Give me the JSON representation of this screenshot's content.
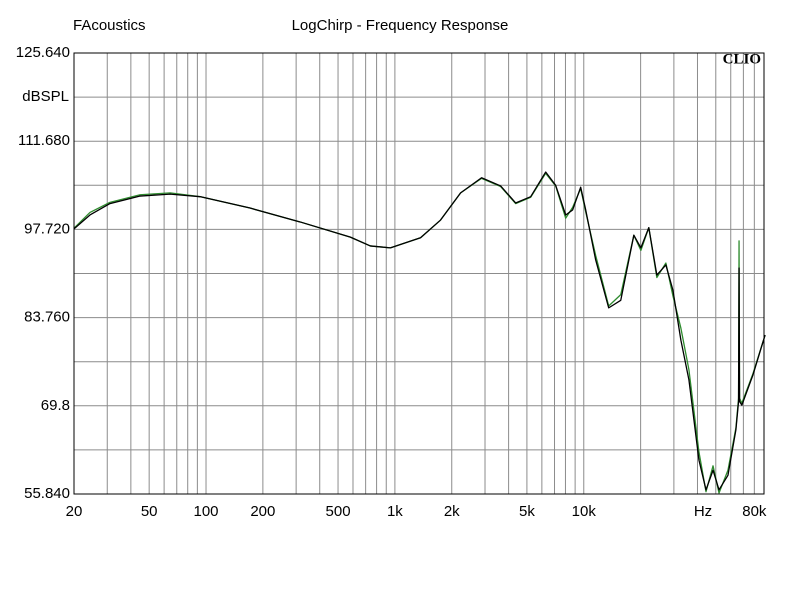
{
  "chart_data": {
    "type": "line",
    "title": "LogChirp - Frequency Response",
    "brand": "FAcoustics",
    "logo": "CLIO",
    "y_label": "dBSPL",
    "x_label": "Hz",
    "x_log": true,
    "grid": true,
    "xlim": [
      20,
      90000
    ],
    "ylim": [
      55.84,
      125.64
    ],
    "xticks": [
      20,
      50,
      100,
      200,
      500,
      {
        "value": 1000,
        "label": "1k"
      },
      {
        "value": 2000,
        "label": "2k"
      },
      {
        "value": 5000,
        "label": "5k"
      },
      {
        "value": 10000,
        "label": "10k"
      },
      {
        "value": 80000,
        "label": "80k"
      }
    ],
    "xgrid": [
      30,
      40,
      60,
      70,
      80,
      90,
      300,
      400,
      600,
      700,
      800,
      900,
      3000,
      4000,
      6000,
      7000,
      8000,
      9000,
      20000,
      30000,
      40000,
      50000,
      60000,
      70000
    ],
    "yticks": [
      {
        "value": 55.84,
        "label": "55.840"
      },
      69.8,
      {
        "value": 83.76,
        "label": "83.760"
      },
      {
        "value": 97.72,
        "label": "97.720"
      },
      {
        "value": 111.68,
        "label": "111.680"
      },
      {
        "value": 125.64,
        "label": "125.640"
      }
    ],
    "ygrid": [
      62.82,
      76.78,
      90.74,
      104.7,
      118.66
    ],
    "x": [
      20,
      24.3,
      31,
      44.8,
      64.6,
      93,
      171,
      315,
      581,
      741,
      946,
      1367,
      1745,
      2228,
      2877,
      3630,
      4358,
      5235,
      6285,
      7100,
      8023,
      8730,
      9630,
      10240,
      11560,
      13550,
      15700,
      18410,
      20060,
      22100,
      24370,
      27210,
      29650,
      32670,
      36040,
      40720,
      44380,
      48350,
      52000,
      58000,
      63900,
      66000,
      66400,
      66800,
      68700,
      78700,
      91200
    ],
    "series": [
      {
        "color": "#2e8b2e",
        "values": [
          97.9,
          100.4,
          102.0,
          103.2,
          103.5,
          102.9,
          101.1,
          98.9,
          96.5,
          95.1,
          94.8,
          96.4,
          99.2,
          103.5,
          105.8,
          104.5,
          101.8,
          102.8,
          106.6,
          104.6,
          99.5,
          101.2,
          104.2,
          100.5,
          93.6,
          85.6,
          87.4,
          96.8,
          94.4,
          98.0,
          90.1,
          92.4,
          87.2,
          82.1,
          75.5,
          62.5,
          56.2,
          60.3,
          56.0,
          59.6,
          66.3,
          71.0,
          95.9,
          71.0,
          70.2,
          74.9,
          81.0
        ]
      },
      {
        "color": "#000000",
        "values": [
          97.8,
          100.0,
          101.8,
          103.0,
          103.3,
          102.9,
          101.1,
          98.9,
          96.5,
          95.1,
          94.8,
          96.4,
          99.2,
          103.5,
          105.9,
          104.6,
          101.9,
          102.9,
          106.8,
          104.7,
          100.0,
          100.8,
          104.4,
          100.8,
          92.9,
          85.3,
          86.5,
          96.8,
          94.8,
          98.0,
          90.5,
          92.1,
          88.1,
          80.2,
          73.9,
          61.2,
          56.5,
          59.6,
          56.5,
          58.8,
          66.0,
          70.5,
          91.6,
          70.5,
          69.9,
          74.7,
          81.0
        ]
      }
    ]
  }
}
